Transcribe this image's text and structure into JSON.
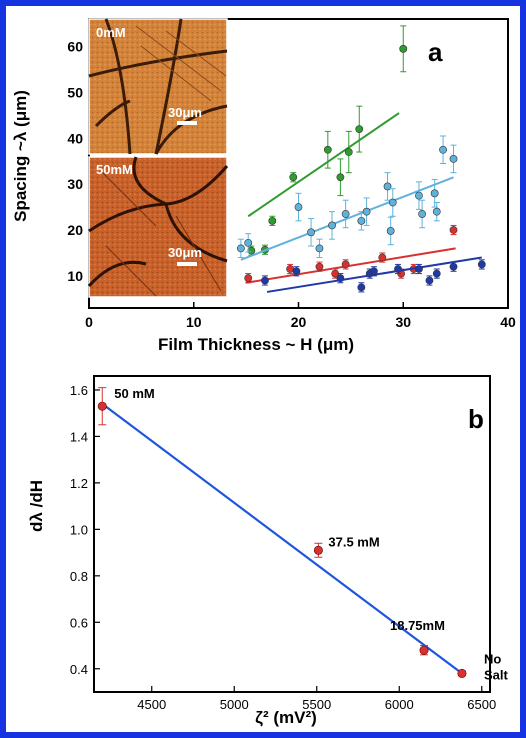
{
  "chart_data": [
    {
      "panel": "a",
      "type": "scatter",
      "xlabel": "Film Thickness ~ H (μm)",
      "ylabel": "Spacing ~λ (μm)",
      "xlim": [
        0,
        40
      ],
      "ylim": [
        3,
        66
      ],
      "xticks": [
        "0",
        "10",
        "20",
        "30",
        "40"
      ],
      "yticks": [
        "10",
        "20",
        "30",
        "40",
        "50",
        "60"
      ],
      "series": [
        {
          "color": "#2e9c2e",
          "points": [
            {
              "x": 15.5,
              "y": 15.5,
              "err": 1.0
            },
            {
              "x": 16.8,
              "y": 15.7,
              "err": 1.0
            },
            {
              "x": 17.5,
              "y": 22.0,
              "err": 1.0
            },
            {
              "x": 19.5,
              "y": 31.5,
              "err": 1.0
            },
            {
              "x": 22.8,
              "y": 37.5,
              "err": 4.0
            },
            {
              "x": 24.0,
              "y": 31.5,
              "err": 4.0
            },
            {
              "x": 24.8,
              "y": 37.0,
              "err": 4.5
            },
            {
              "x": 25.8,
              "y": 42.0,
              "err": 5.0
            },
            {
              "x": 30.0,
              "y": 59.5,
              "err": 5.0
            }
          ],
          "fit": {
            "x": [
              15.2,
              29.6
            ],
            "y": [
              23.0,
              45.5
            ]
          }
        },
        {
          "color": "#5fb2dc",
          "points": [
            {
              "x": 14.5,
              "y": 16.0,
              "err": 2.0
            },
            {
              "x": 15.2,
              "y": 17.2,
              "err": 2.0
            },
            {
              "x": 20.0,
              "y": 25.0,
              "err": 3.0
            },
            {
              "x": 21.2,
              "y": 19.5,
              "err": 3.0
            },
            {
              "x": 22.0,
              "y": 16.0,
              "err": 2.0
            },
            {
              "x": 23.2,
              "y": 21.0,
              "err": 3.0
            },
            {
              "x": 24.5,
              "y": 23.5,
              "err": 3.0
            },
            {
              "x": 26.0,
              "y": 22.0,
              "err": 2.0
            },
            {
              "x": 26.5,
              "y": 24.0,
              "err": 3.0
            },
            {
              "x": 28.5,
              "y": 29.5,
              "err": 3.0
            },
            {
              "x": 28.8,
              "y": 19.8,
              "err": 3.0
            },
            {
              "x": 29.0,
              "y": 26.0,
              "err": 3.0
            },
            {
              "x": 31.5,
              "y": 27.5,
              "err": 3.0
            },
            {
              "x": 31.8,
              "y": 23.5,
              "err": 3.0
            },
            {
              "x": 33.0,
              "y": 28.0,
              "err": 3.0
            },
            {
              "x": 33.2,
              "y": 24.0,
              "err": 2.0
            },
            {
              "x": 33.8,
              "y": 37.5,
              "err": 3.0
            },
            {
              "x": 34.8,
              "y": 35.5,
              "err": 3.0
            }
          ],
          "fit": {
            "x": [
              14.5,
              34.8
            ],
            "y": [
              13.5,
              31.5
            ]
          }
        },
        {
          "color": "#d93030",
          "points": [
            {
              "x": 15.2,
              "y": 9.5,
              "err": 1.0
            },
            {
              "x": 19.2,
              "y": 11.5,
              "err": 1.0
            },
            {
              "x": 22.0,
              "y": 12.0,
              "err": 1.0
            },
            {
              "x": 23.5,
              "y": 10.5,
              "err": 1.0
            },
            {
              "x": 24.5,
              "y": 12.5,
              "err": 1.0
            },
            {
              "x": 28.0,
              "y": 14.0,
              "err": 1.0
            },
            {
              "x": 29.8,
              "y": 10.5,
              "err": 1.0
            },
            {
              "x": 31.0,
              "y": 11.5,
              "err": 1.0
            },
            {
              "x": 34.8,
              "y": 20.0,
              "err": 1.0
            }
          ],
          "fit": {
            "x": [
              15.0,
              35.0
            ],
            "y": [
              8.5,
              16.0
            ]
          }
        },
        {
          "color": "#1f3aa6",
          "points": [
            {
              "x": 16.8,
              "y": 9.0,
              "err": 1.0
            },
            {
              "x": 19.8,
              "y": 11.0,
              "err": 1.0
            },
            {
              "x": 24.0,
              "y": 9.5,
              "err": 1.0
            },
            {
              "x": 26.0,
              "y": 7.5,
              "err": 1.0
            },
            {
              "x": 26.8,
              "y": 10.5,
              "err": 1.0
            },
            {
              "x": 27.2,
              "y": 11.0,
              "err": 1.0
            },
            {
              "x": 29.5,
              "y": 11.5,
              "err": 1.0
            },
            {
              "x": 31.5,
              "y": 11.5,
              "err": 1.0
            },
            {
              "x": 32.5,
              "y": 9.0,
              "err": 1.0
            },
            {
              "x": 33.2,
              "y": 10.5,
              "err": 1.0
            },
            {
              "x": 34.8,
              "y": 12.0,
              "err": 1.0
            },
            {
              "x": 37.5,
              "y": 12.5,
              "err": 1.0
            }
          ],
          "fit": {
            "x": [
              17.0,
              37.5
            ],
            "y": [
              6.5,
              14.0
            ]
          }
        }
      ],
      "insets": [
        {
          "label": "0mM",
          "scale_bar": "30μm"
        },
        {
          "label": "50mM",
          "scale_bar": "30μm"
        }
      ]
    },
    {
      "panel": "b",
      "type": "scatter",
      "xlabel": "ζ² (mV²)",
      "ylabel": "dλ /dH",
      "xlim": [
        4150,
        6550
      ],
      "ylim": [
        0.3,
        1.66
      ],
      "xticks": [
        "4500",
        "5000",
        "5500",
        "6000",
        "6500"
      ],
      "yticks": [
        "0.4",
        "0.6",
        "0.8",
        "1.0",
        "1.2",
        "1.4",
        "1.6"
      ],
      "points": [
        {
          "x": 4200,
          "y": 1.53,
          "err": 0.08,
          "label": "50 mM"
        },
        {
          "x": 5510,
          "y": 0.91,
          "err": 0.03,
          "label": "37.5 mM"
        },
        {
          "x": 6150,
          "y": 0.48,
          "err": 0.02,
          "label": "18.75mM"
        },
        {
          "x": 6380,
          "y": 0.38,
          "err": 0.01,
          "label": "No Salt"
        }
      ],
      "fit": {
        "x": [
          4200,
          6380
        ],
        "y": [
          1.54,
          0.38
        ]
      }
    }
  ],
  "colors": {
    "frame_border": "#1533e0",
    "fit_line_b": "#1f56e0",
    "marker_b": "#d93030"
  },
  "panel_labels": {
    "a": "a",
    "b": "b"
  }
}
